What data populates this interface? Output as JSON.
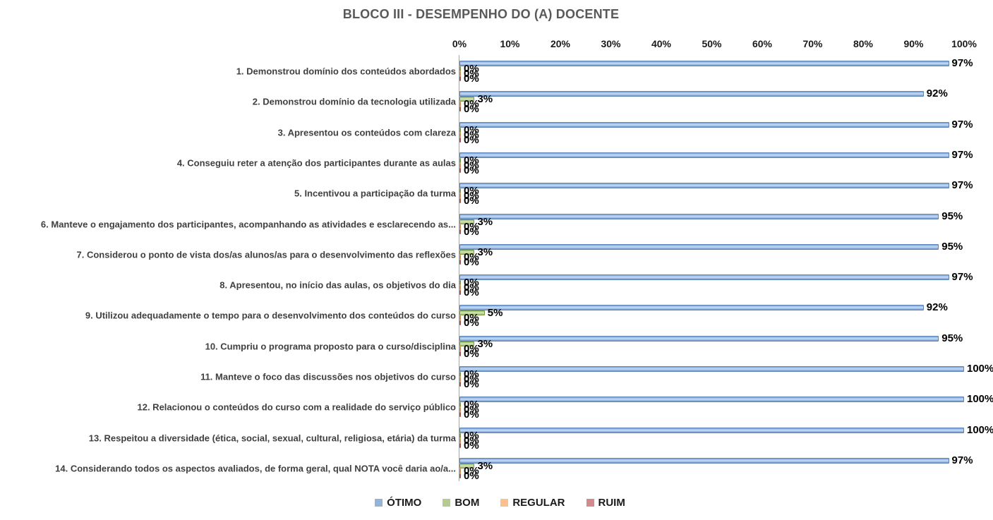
{
  "chart_data": {
    "type": "bar",
    "orientation": "horizontal",
    "title": "BLOCO III - DESEMPENHO DO (A) DOCENTE",
    "title_color": "#595959",
    "x_axis": {
      "min": 0,
      "max": 100,
      "tick_step": 10,
      "ticks": [
        "0%",
        "10%",
        "20%",
        "30%",
        "40%",
        "50%",
        "60%",
        "70%",
        "80%",
        "90%",
        "100%"
      ]
    },
    "grid": "off",
    "data_labels": "on",
    "legend_position": "bottom",
    "categories": [
      "1. Demonstrou domínio dos conteúdos abordados",
      "2. Demonstrou domínio da tecnologia utilizada",
      "3. Apresentou os conteúdos com clareza",
      "4. Conseguiu reter a atenção dos participantes durante as aulas",
      "5. Incentivou a participação da turma",
      "6. Manteve o engajamento dos participantes, acompanhando as atividades e esclarecendo as...",
      "7. Considerou o ponto de vista dos/as alunos/as para o desenvolvimento das reflexões",
      "8. Apresentou, no início das aulas, os objetivos do dia",
      "9. Utilizou adequadamente o tempo para o desenvolvimento dos conteúdos do curso",
      "10. Cumpriu o programa proposto para o curso/disciplina",
      "11. Manteve o foco das discussões nos objetivos do curso",
      "12. Relacionou o conteúdos do curso com a realidade do serviço público",
      "13. Respeitou a diversidade (ética, social, sexual, cultural, religiosa, etária) da turma",
      "14. Considerando todos os aspectos avaliados, de forma geral, qual NOTA você daria ao/a..."
    ],
    "series": [
      {
        "name": "ÓTIMO",
        "color": "#95B3D7",
        "values": [
          97,
          92,
          97,
          97,
          97,
          95,
          95,
          97,
          92,
          95,
          100,
          100,
          100,
          97
        ]
      },
      {
        "name": "BOM",
        "color": "#B5CC8E",
        "values": [
          0,
          3,
          0,
          0,
          0,
          3,
          3,
          0,
          5,
          3,
          0,
          0,
          0,
          3
        ]
      },
      {
        "name": "REGULAR",
        "color": "#FAC090",
        "values": [
          0,
          0,
          0,
          0,
          0,
          0,
          0,
          0,
          0,
          0,
          0,
          0,
          0,
          0
        ]
      },
      {
        "name": "RUIM",
        "color": "#D28B8A",
        "values": [
          0,
          0,
          0,
          0,
          0,
          0,
          0,
          0,
          0,
          0,
          0,
          0,
          0,
          0
        ]
      }
    ],
    "data_label_format": "{value}%"
  }
}
